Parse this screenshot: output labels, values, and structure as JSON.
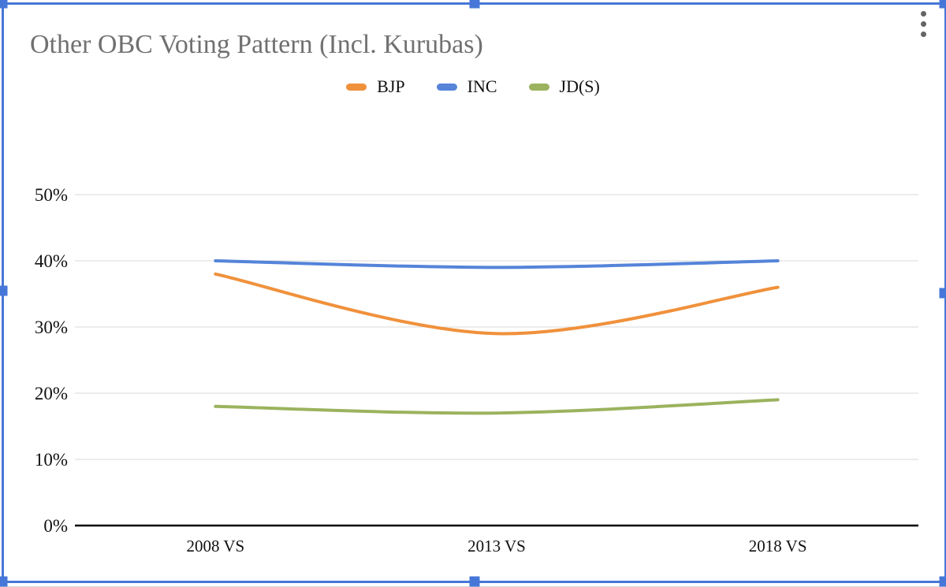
{
  "chart_data": {
    "type": "line",
    "smooth": true,
    "title": "Other OBC Voting Pattern (Incl. Kurubas)",
    "categories": [
      "2008 VS",
      "2013 VS",
      "2018 VS"
    ],
    "series": [
      {
        "name": "BJP",
        "values": [
          38,
          29,
          36
        ],
        "color": "#F0913C"
      },
      {
        "name": "INC",
        "values": [
          40,
          39,
          40
        ],
        "color": "#5584D9"
      },
      {
        "name": "JD(S)",
        "values": [
          18,
          17,
          19
        ],
        "color": "#9BB35E"
      }
    ],
    "yticks": [
      0,
      10,
      20,
      30,
      40,
      50
    ],
    "ytick_labels": [
      "0%",
      "10%",
      "20%",
      "30%",
      "40%",
      "50%"
    ],
    "ylim": [
      0,
      50
    ],
    "xlabel": "",
    "ylabel": "",
    "grid": true,
    "legend_position": "top",
    "title_color": "#707070",
    "gridline_color": "#D9D9D9",
    "axis_color": "#000000",
    "label_color": "#111111"
  },
  "selection": {
    "border_color": "#4677D8",
    "handle_color": "#4677D8",
    "handles": [
      "top-left",
      "top-middle",
      "top-right",
      "middle-left",
      "middle-right",
      "bottom-left",
      "bottom-middle",
      "bottom-right"
    ]
  },
  "icons": {
    "options_menu": "more-vertical"
  }
}
